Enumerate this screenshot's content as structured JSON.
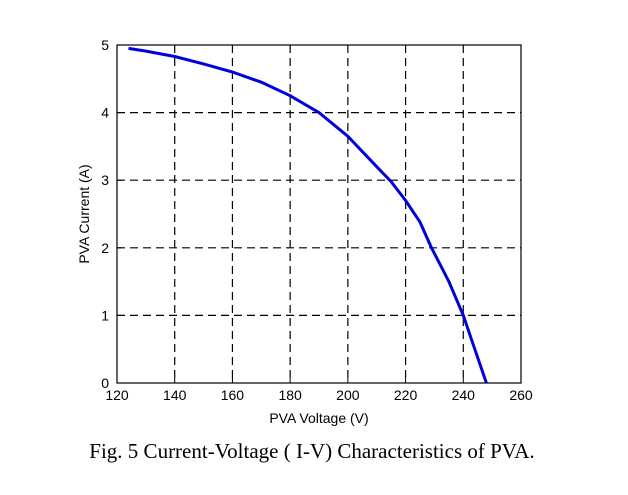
{
  "caption": "Fig. 5 Current-Voltage ( I-V) Characteristics of PVA.",
  "chart_data": {
    "type": "line",
    "title": "",
    "xlabel": "PVA Voltage (V)",
    "ylabel": "PVA Current (A)",
    "xlim": [
      120,
      260
    ],
    "ylim": [
      0,
      5
    ],
    "xticks": [
      120,
      140,
      160,
      180,
      200,
      220,
      240,
      260
    ],
    "yticks": [
      0,
      1,
      2,
      3,
      4,
      5
    ],
    "grid": true,
    "grid_style": "dashed",
    "series": [
      {
        "color": "#0000dd",
        "x": [
          124,
          130,
          140,
          150,
          160,
          170,
          180,
          190,
          200,
          210,
          215,
          220,
          225,
          229,
          235,
          240,
          244,
          248
        ],
        "y": [
          4.95,
          4.91,
          4.83,
          4.72,
          4.6,
          4.45,
          4.25,
          4.0,
          3.65,
          3.2,
          2.98,
          2.7,
          2.38,
          2.0,
          1.5,
          1.0,
          0.5,
          0.0
        ]
      }
    ]
  }
}
